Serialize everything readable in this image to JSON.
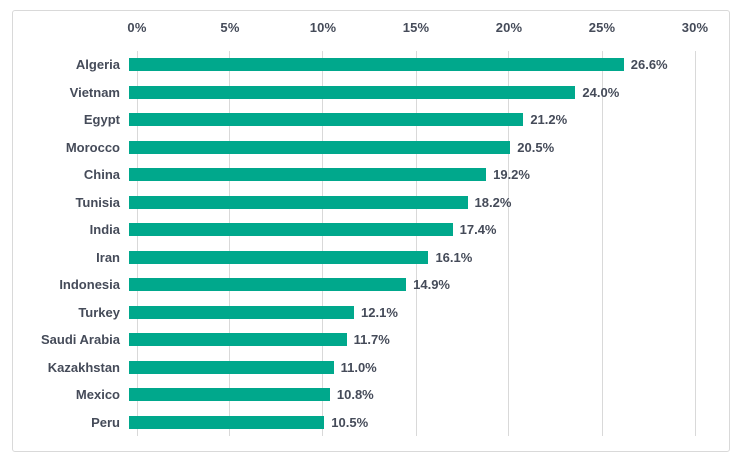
{
  "chart_data": {
    "type": "bar",
    "orientation": "horizontal",
    "title": "",
    "xlabel": "",
    "ylabel": "",
    "axis_position": "top",
    "grid": "vertical",
    "legend": "none",
    "xlim": [
      0,
      30
    ],
    "x_ticks": [
      {
        "label": "0%",
        "value": 0
      },
      {
        "label": "5%",
        "value": 5
      },
      {
        "label": "10%",
        "value": 10
      },
      {
        "label": "15%",
        "value": 15
      },
      {
        "label": "20%",
        "value": 20
      },
      {
        "label": "25%",
        "value": 25
      },
      {
        "label": "30%",
        "value": 30
      }
    ],
    "categories": [
      "Algeria",
      "Vietnam",
      "Egypt",
      "Morocco",
      "China",
      "Tunisia",
      "India",
      "Iran",
      "Indonesia",
      "Turkey",
      "Saudi Arabia",
      "Kazakhstan",
      "Mexico",
      "Peru"
    ],
    "values": [
      26.6,
      24.0,
      21.2,
      20.5,
      19.2,
      18.2,
      17.4,
      16.1,
      14.9,
      12.1,
      11.7,
      11.0,
      10.8,
      10.5
    ],
    "value_labels": [
      "26.6%",
      "24.0%",
      "21.2%",
      "20.5%",
      "19.2%",
      "18.2%",
      "17.4%",
      "16.1%",
      "14.9%",
      "12.1%",
      "11.7%",
      "11.0%",
      "10.8%",
      "10.5%"
    ],
    "colors": {
      "bar": "#00A88C",
      "gridline": "#D9D9D9",
      "border": "#D9D9D9",
      "text": "#454B59",
      "background": "#FFFFFF"
    }
  }
}
